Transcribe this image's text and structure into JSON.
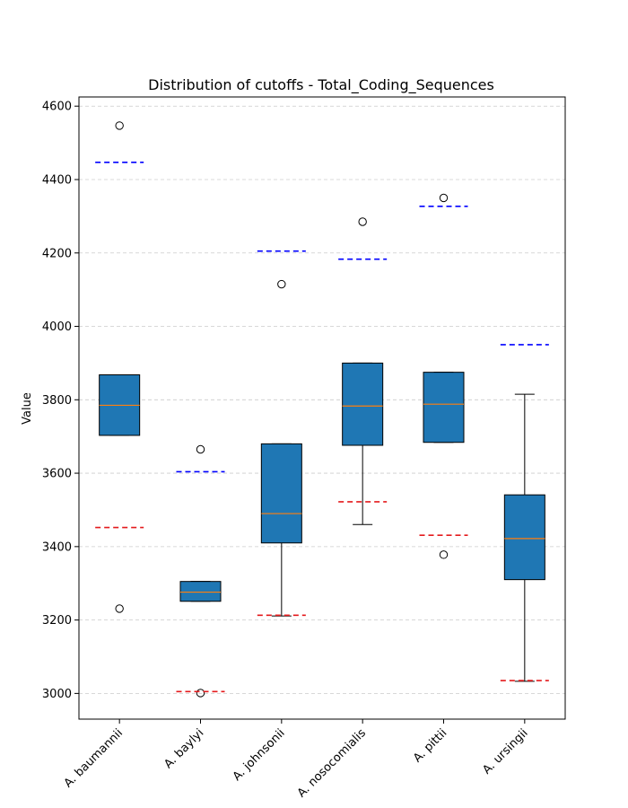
{
  "chart_data": {
    "type": "box",
    "title": "Distribution of cutoffs - Total_Coding_Sequences",
    "xlabel": "",
    "ylabel": "Value",
    "ylim": [
      2930,
      4625
    ],
    "yticks": [
      3000,
      3200,
      3400,
      3600,
      3800,
      4000,
      4200,
      4400,
      4600
    ],
    "grid": "y-dashed",
    "categories": [
      "A. baumannii",
      "A. baylyi",
      "A. johnsonii",
      "A. nosocomialis",
      "A. pittii",
      "A. ursingii"
    ],
    "boxes": [
      {
        "whisker_low": 3703,
        "q1": 3703,
        "median": 3785,
        "q3": 3868,
        "whisker_high": 3868,
        "outliers": [
          4547,
          3231
        ]
      },
      {
        "whisker_low": 3251,
        "q1": 3251,
        "median": 3276,
        "q3": 3305,
        "whisker_high": 3305,
        "outliers": [
          3665,
          3001
        ]
      },
      {
        "whisker_low": 3211,
        "q1": 3410,
        "median": 3490,
        "q3": 3680,
        "whisker_high": 3680,
        "outliers": [
          4115
        ]
      },
      {
        "whisker_low": 3460,
        "q1": 3676,
        "median": 3783,
        "q3": 3900,
        "whisker_high": 3900,
        "outliers": [
          4285
        ]
      },
      {
        "whisker_low": 3684,
        "q1": 3684,
        "median": 3788,
        "q3": 3875,
        "whisker_high": 3875,
        "outliers": [
          4350,
          3378
        ]
      },
      {
        "whisker_low": 3033,
        "q1": 3310,
        "median": 3422,
        "q3": 3541,
        "whisker_high": 3815,
        "outliers": []
      }
    ],
    "cutoff_upper": [
      4447,
      3604,
      4205,
      4183,
      4327,
      3950
    ],
    "cutoff_lower": [
      3452,
      3005,
      3213,
      3522,
      3431,
      3035
    ],
    "colors": {
      "box_fill": "#1f77b4",
      "median": "#ff7f0e",
      "upper_cutoff": "#0000ff",
      "lower_cutoff": "#e41a1c",
      "grid": "#cccccc"
    }
  }
}
